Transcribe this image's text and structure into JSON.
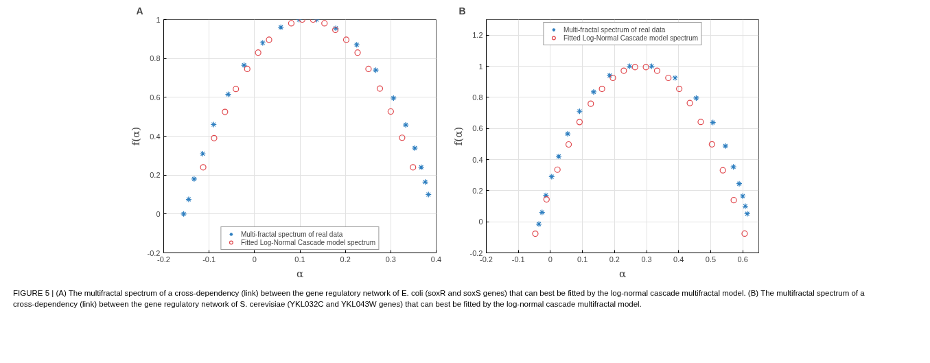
{
  "chart_data": [
    {
      "type": "scatter",
      "title": "A",
      "xlabel": "α",
      "ylabel": "f(α)",
      "xlim": [
        -0.2,
        0.4
      ],
      "ylim": [
        -0.2,
        1
      ],
      "xticks": [
        -0.2,
        -0.1,
        0,
        0.1,
        0.2,
        0.3,
        0.4
      ],
      "yticks": [
        -0.2,
        0,
        0.2,
        0.4,
        0.6,
        0.8,
        1
      ],
      "grid": true,
      "legend": "bottom",
      "series": [
        {
          "name": "Multi-fractal spectrum of real data",
          "color": "#2f7fc0",
          "marker": "cross",
          "x": [
            -0.156,
            -0.145,
            -0.133,
            -0.114,
            -0.09,
            -0.058,
            -0.023,
            0.018,
            0.058,
            0.098,
            0.137,
            0.179,
            0.225,
            0.267,
            0.306,
            0.333,
            0.353,
            0.367,
            0.376,
            0.383
          ],
          "values": [
            0.0,
            0.075,
            0.18,
            0.31,
            0.46,
            0.615,
            0.765,
            0.88,
            0.96,
            1.0,
            1.0,
            0.955,
            0.87,
            0.74,
            0.596,
            0.458,
            0.339,
            0.24,
            0.164,
            0.1
          ]
        },
        {
          "name": "Fitted Log-Normal Cascade model spectrum",
          "color": "#e0474c",
          "marker": "circle",
          "x": [
            -0.113,
            -0.089,
            -0.065,
            -0.041,
            -0.016,
            0.008,
            0.032,
            0.081,
            0.105,
            0.129,
            0.154,
            0.178,
            0.202,
            0.227,
            0.251,
            0.276,
            0.3,
            0.325,
            0.349
          ],
          "values": [
            0.24,
            0.39,
            0.525,
            0.643,
            0.746,
            0.83,
            0.896,
            0.981,
            1.0,
            1.0,
            0.981,
            0.947,
            0.896,
            0.83,
            0.746,
            0.645,
            0.527,
            0.392,
            0.24
          ]
        }
      ],
      "annotations": [
        "FIGURE 5 | (A) The multifractal spectrum of a cross-dependency (link) between the gene regulatory network of E. coli (soxR and soxS genes) that can best be fitted by the log-normal cascade multifractal model. (B) The multifractal spectrum of a cross-dependency (link) between the gene regulatory network of S. cerevisiae (YKL032C and YKL043W genes) that can best be fitted by the log-normal cascade multifractal model."
      ]
    },
    {
      "type": "scatter",
      "title": "B",
      "xlabel": "α",
      "ylabel": "f(α)",
      "xlim": [
        -0.2,
        0.65
      ],
      "ylim": [
        -0.2,
        1.3
      ],
      "xticks": [
        -0.2,
        -0.1,
        0,
        0.1,
        0.2,
        0.3,
        0.4,
        0.5,
        0.6
      ],
      "yticks": [
        -0.2,
        0,
        0.2,
        0.4,
        0.6,
        0.8,
        1,
        1.2
      ],
      "grid": true,
      "legend": "top",
      "series": [
        {
          "name": "Multi-fractal spectrum of real data",
          "color": "#2f7fc0",
          "marker": "cross",
          "x": [
            -0.036,
            -0.026,
            -0.014,
            0.004,
            0.026,
            0.054,
            0.091,
            0.135,
            0.185,
            0.247,
            0.316,
            0.389,
            0.455,
            0.507,
            0.546,
            0.571,
            0.589,
            0.6,
            0.608,
            0.614
          ],
          "values": [
            -0.015,
            0.06,
            0.17,
            0.29,
            0.42,
            0.565,
            0.71,
            0.835,
            0.94,
            1.0,
            1.0,
            0.925,
            0.795,
            0.638,
            0.487,
            0.353,
            0.245,
            0.165,
            0.1,
            0.052
          ]
        },
        {
          "name": "Fitted Log-Normal Cascade model spectrum",
          "color": "#e0474c",
          "marker": "circle",
          "x": [
            -0.047,
            -0.012,
            0.022,
            0.057,
            0.091,
            0.126,
            0.161,
            0.195,
            0.229,
            0.264,
            0.298,
            0.333,
            0.368,
            0.402,
            0.435,
            0.469,
            0.504,
            0.538,
            0.572,
            0.606
          ],
          "values": [
            -0.077,
            0.144,
            0.335,
            0.497,
            0.641,
            0.759,
            0.854,
            0.925,
            0.971,
            0.994,
            0.994,
            0.971,
            0.925,
            0.854,
            0.763,
            0.642,
            0.498,
            0.331,
            0.139,
            -0.076
          ]
        }
      ]
    }
  ]
}
